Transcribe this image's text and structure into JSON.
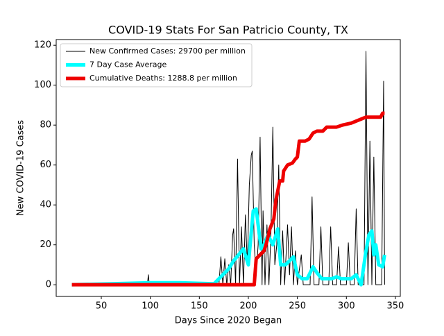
{
  "chart_data": {
    "type": "line",
    "title": "COVID-19 Stats For San Patricio County, TX",
    "xlabel": "Days Since 2020 Began",
    "ylabel": "New COVID-19 Cases",
    "xlim": [
      4,
      355
    ],
    "ylim": [
      -5.85,
      122.85
    ],
    "xticks": [
      50,
      100,
      150,
      200,
      250,
      300,
      350
    ],
    "yticks": [
      0,
      20,
      40,
      60,
      80,
      100,
      120
    ],
    "legend": "upper left",
    "series": [
      {
        "name": "New Confirmed Cases: 29700 per million",
        "color": "#000000",
        "width": 1,
        "x": [
          20,
          97,
          98,
          99,
          170,
          172,
          174,
          176,
          178,
          180,
          182,
          184,
          185,
          187,
          189,
          191,
          193,
          195,
          197,
          199,
          201,
          203,
          204,
          206,
          208,
          210,
          212,
          214,
          215,
          217,
          219,
          221,
          223,
          225,
          227,
          229,
          231,
          233,
          235,
          237,
          240,
          242,
          244,
          246,
          248,
          250,
          254,
          256,
          263,
          265,
          267,
          272,
          274,
          276,
          282,
          284,
          286,
          290,
          292,
          294,
          300,
          302,
          304,
          308,
          310,
          312,
          318,
          320,
          322,
          324,
          326,
          328,
          330,
          336,
          338,
          339
        ],
        "values": [
          0,
          0,
          5,
          0,
          0,
          14,
          0,
          13,
          0,
          10,
          0,
          25,
          28,
          0,
          63,
          0,
          29,
          0,
          35,
          10,
          50,
          65,
          67,
          20,
          5,
          20,
          74,
          0,
          37,
          0,
          30,
          0,
          25,
          79,
          10,
          20,
          60,
          0,
          27,
          0,
          30,
          5,
          29,
          0,
          17,
          0,
          15,
          0,
          0,
          44,
          0,
          0,
          29,
          0,
          0,
          29,
          0,
          0,
          19,
          0,
          0,
          21,
          0,
          0,
          38,
          0,
          0,
          117,
          0,
          72,
          0,
          64,
          0,
          0,
          102,
          0
        ]
      },
      {
        "name": "7 Day Case Average",
        "color": "#00ffff",
        "width": 5,
        "x": [
          20,
          100,
          130,
          165,
          170,
          180,
          185,
          190,
          195,
          200,
          205,
          208,
          210,
          213,
          216,
          220,
          225,
          230,
          233,
          238,
          242,
          246,
          250,
          255,
          260,
          266,
          270,
          275,
          285,
          290,
          295,
          305,
          310,
          315,
          320,
          323,
          326,
          328,
          330,
          333,
          337,
          339
        ],
        "values": [
          0,
          1,
          1,
          0.5,
          3,
          8,
          12,
          15,
          18,
          10,
          37,
          38,
          30,
          18,
          20,
          25,
          20,
          28,
          10,
          10,
          12,
          14,
          5,
          3,
          3,
          9,
          6,
          3,
          3,
          4,
          3,
          3,
          5,
          0,
          17,
          25,
          27,
          15,
          20,
          10,
          9,
          15
        ]
      },
      {
        "name": "Cumulative Deaths: 1288.8 per million",
        "color": "#ee0000",
        "width": 5,
        "x": [
          20,
          206,
          208,
          212,
          216,
          218,
          222,
          226,
          228,
          232,
          235,
          236,
          240,
          245,
          248,
          250,
          252,
          258,
          262,
          266,
          270,
          276,
          280,
          290,
          296,
          305,
          310,
          315,
          320,
          335,
          337,
          339
        ],
        "values": [
          0,
          0,
          13,
          15,
          17,
          20,
          28,
          33,
          42,
          52,
          52,
          57,
          60,
          61,
          63,
          64,
          72,
          72,
          73,
          76,
          77,
          77,
          79,
          79,
          80,
          81,
          82,
          83,
          84,
          84,
          86,
          86
        ]
      }
    ]
  }
}
